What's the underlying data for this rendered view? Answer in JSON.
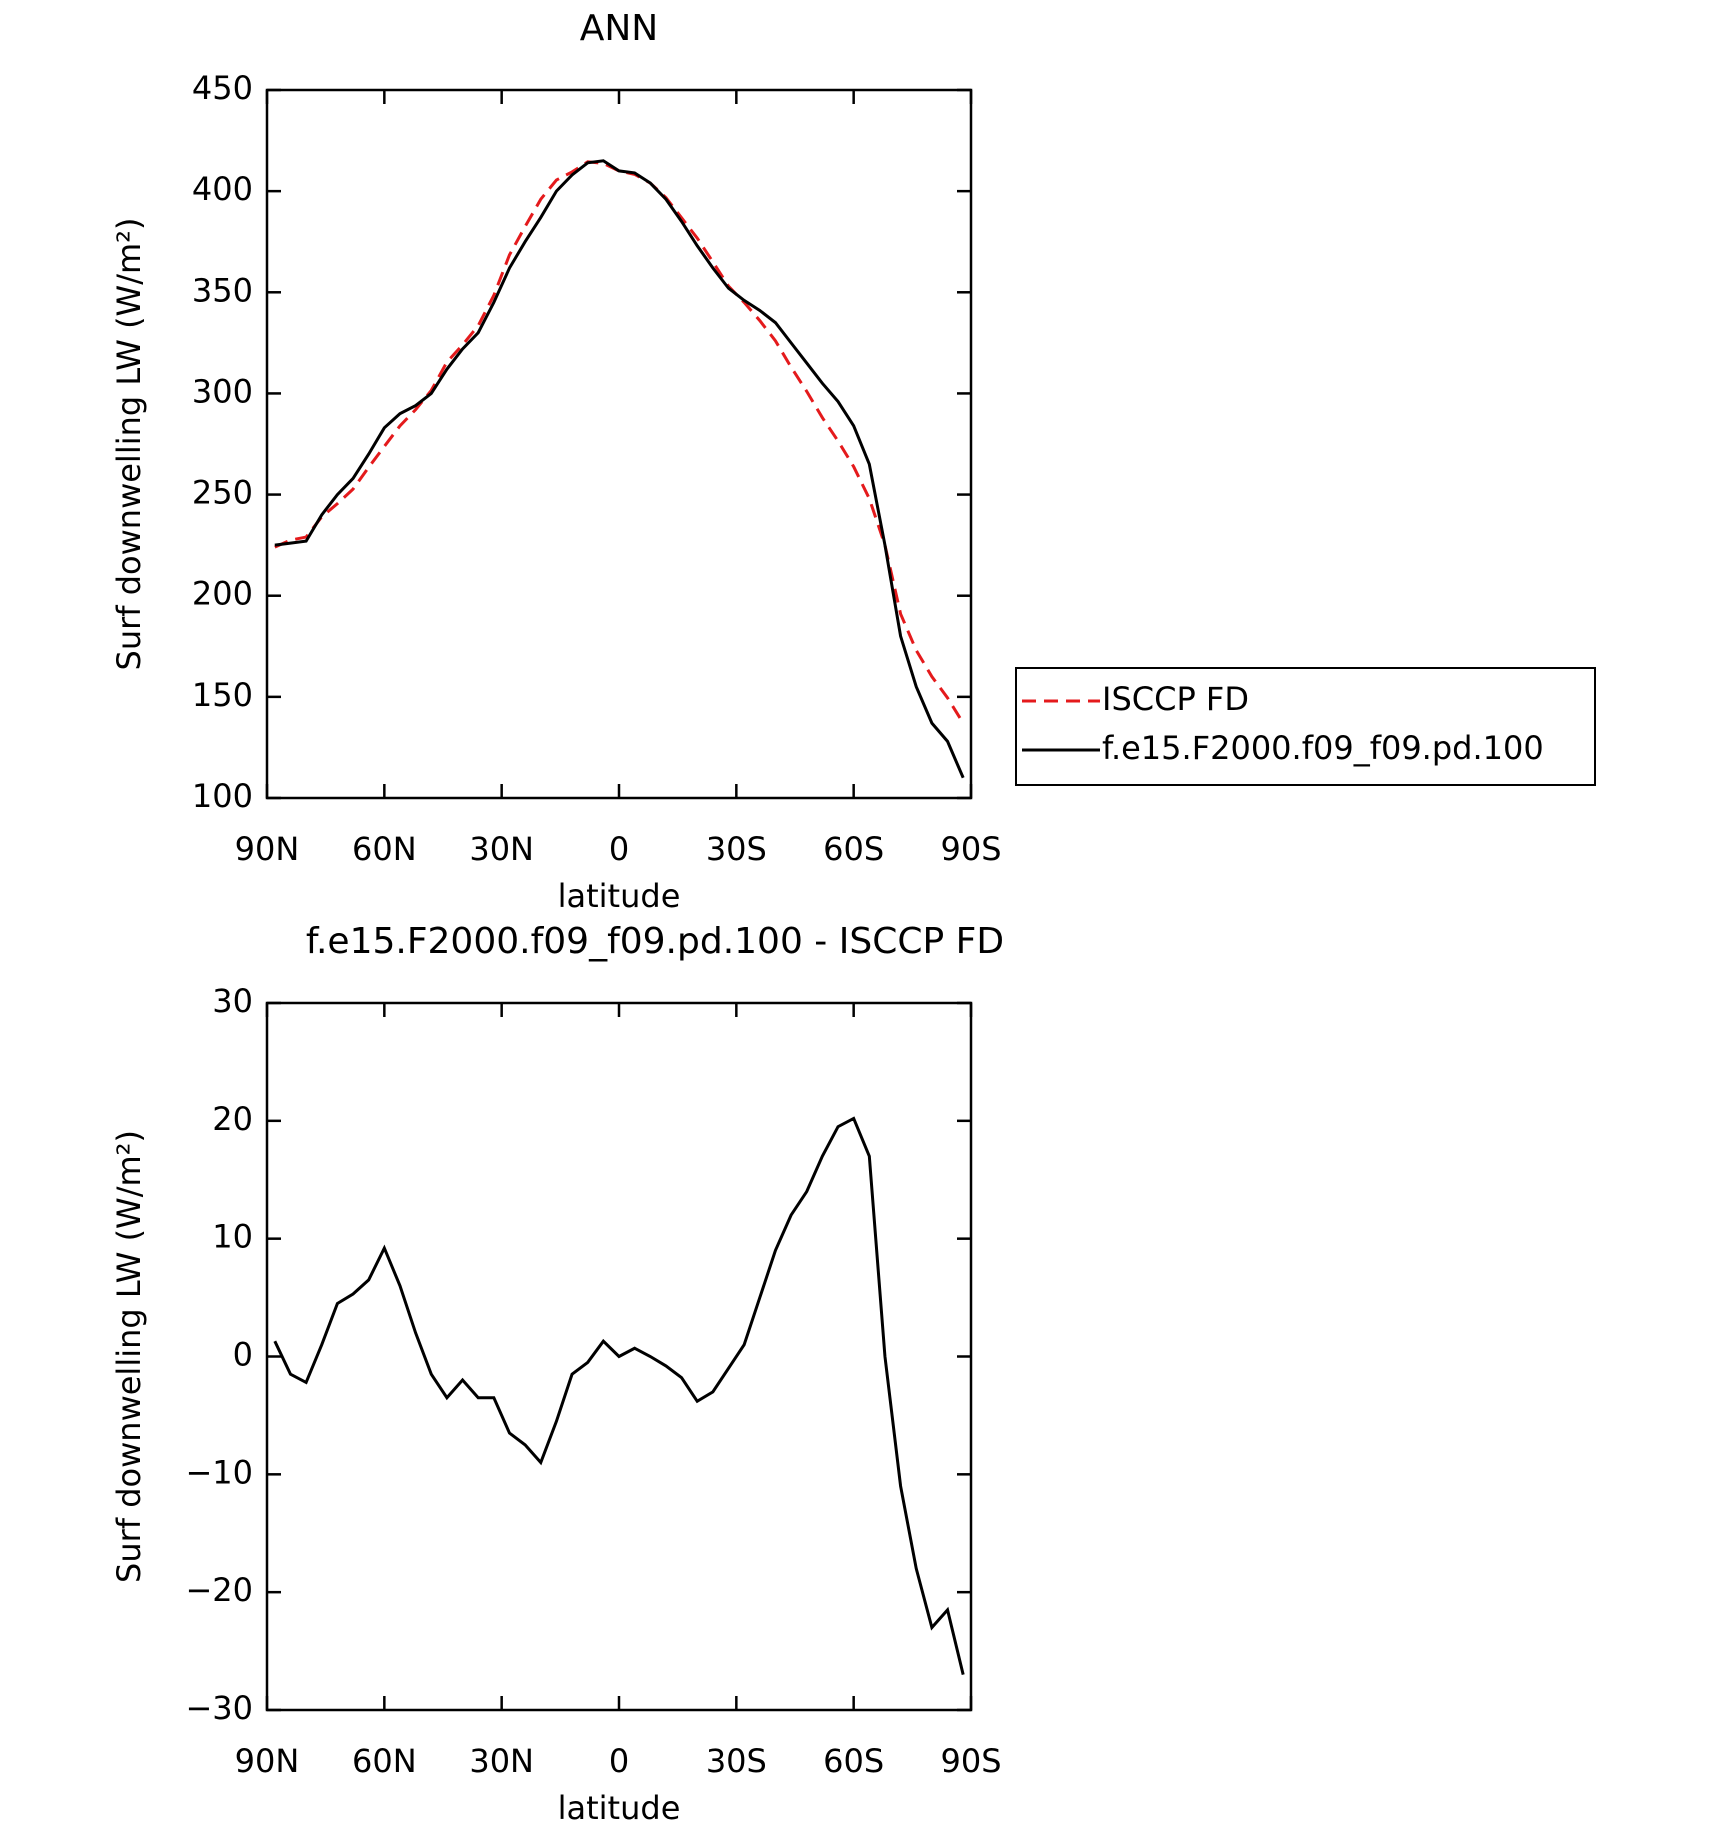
{
  "chart_data": [
    {
      "type": "line",
      "title": "ANN",
      "xlabel": "latitude",
      "ylabel": "Surf downwelling LW (W/m²)",
      "x": [
        88,
        84,
        80,
        76,
        72,
        68,
        64,
        60,
        56,
        52,
        48,
        44,
        40,
        36,
        32,
        28,
        24,
        20,
        16,
        12,
        8,
        4,
        0,
        -4,
        -8,
        -12,
        -16,
        -20,
        -24,
        -28,
        -32,
        -36,
        -40,
        -44,
        -48,
        -52,
        -56,
        -60,
        -64,
        -68,
        -72,
        -76,
        -80,
        -84,
        -88
      ],
      "series": [
        {
          "name": "ISCCP FD",
          "color": "#e41a1c",
          "dash": true,
          "values": [
            224,
            227.5,
            229,
            239,
            245.5,
            252.7,
            263.5,
            273.8,
            284,
            292,
            301.5,
            315.5,
            324,
            333.5,
            348.5,
            368.5,
            382.5,
            396,
            405.5,
            409.5,
            414.5,
            413.7,
            410,
            408.3,
            404,
            396.8,
            386.8,
            376.8,
            365,
            353,
            345,
            336,
            326,
            313,
            301,
            288,
            276.5,
            263.8,
            248,
            225,
            191,
            173,
            160,
            149.5,
            137
          ]
        },
        {
          "name": "f.e15.F2000.f09_f09.pd.100",
          "color": "#000000",
          "dash": false,
          "values": [
            225,
            226,
            227,
            240,
            250,
            258,
            270,
            283,
            290,
            294,
            300,
            312,
            322,
            330,
            345,
            362,
            375,
            387,
            400,
            408,
            414,
            415,
            410,
            409,
            404,
            396,
            385,
            373,
            362,
            352,
            346,
            341,
            335,
            325,
            315,
            305,
            296,
            284,
            265,
            225,
            180,
            155,
            137,
            128,
            110
          ]
        }
      ],
      "xlim": [
        90,
        -90
      ],
      "xticks": [
        {
          "value": 90,
          "label": "90N"
        },
        {
          "value": 60,
          "label": "60N"
        },
        {
          "value": 30,
          "label": "30N"
        },
        0,
        {
          "value": -30,
          "label": "30S"
        },
        {
          "value": -60,
          "label": "60S"
        },
        {
          "value": -90,
          "label": "90S"
        }
      ],
      "ylim": [
        100,
        450
      ],
      "yticks": [
        100,
        150,
        200,
        250,
        300,
        350,
        400,
        450
      ],
      "legend": "right"
    },
    {
      "type": "line",
      "title": "f.e15.F2000.f09_f09.pd.100 - ISCCP FD",
      "xlabel": "latitude",
      "ylabel": "Surf downwelling LW (W/m²)",
      "x": [
        88,
        84,
        80,
        76,
        72,
        68,
        64,
        60,
        56,
        52,
        48,
        44,
        40,
        36,
        32,
        28,
        24,
        20,
        16,
        12,
        8,
        4,
        0,
        -4,
        -8,
        -12,
        -16,
        -20,
        -24,
        -28,
        -32,
        -36,
        -40,
        -44,
        -48,
        -52,
        -56,
        -60,
        -64,
        -68,
        -72,
        -76,
        -80,
        -84,
        -88
      ],
      "series": [
        {
          "color": "#000000",
          "dash": false,
          "values": [
            1.3,
            -1.5,
            -2.2,
            1,
            4.5,
            5.3,
            6.5,
            9.2,
            6,
            2,
            -1.5,
            -3.5,
            -2,
            -3.5,
            -3.5,
            -6.5,
            -7.5,
            -9,
            -5.5,
            -1.5,
            -0.5,
            1.3,
            0,
            0.7,
            0,
            -0.8,
            -1.8,
            -3.8,
            -3,
            -1,
            1,
            5,
            9,
            12,
            14,
            17,
            19.5,
            20.2,
            17,
            0,
            -11,
            -18,
            -23,
            -21.5,
            -27
          ]
        }
      ],
      "xlim": [
        90,
        -90
      ],
      "xticks": [
        {
          "value": 90,
          "label": "90N"
        },
        {
          "value": 60,
          "label": "60N"
        },
        {
          "value": 30,
          "label": "30N"
        },
        0,
        {
          "value": -30,
          "label": "30S"
        },
        {
          "value": -60,
          "label": "60S"
        },
        {
          "value": -90,
          "label": "90S"
        }
      ],
      "ylim": [
        -30,
        30
      ],
      "yticks": [
        {
          "value": -30,
          "label": "−30"
        },
        {
          "value": -20,
          "label": "−20"
        },
        {
          "value": -10,
          "label": "−10"
        },
        0,
        10,
        20,
        30
      ]
    }
  ]
}
